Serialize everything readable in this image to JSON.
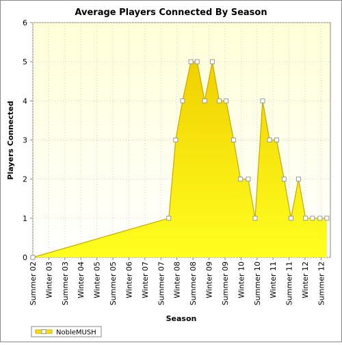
{
  "chart_data": {
    "type": "area",
    "title": "Average Players Connected By Season",
    "x_label": "Season",
    "y_label": "Players Connected",
    "x": [
      0,
      8.49,
      8.92,
      9.35,
      9.87,
      10.26,
      10.73,
      11.21,
      11.64,
      12.07,
      12.54,
      12.97,
      13.45,
      13.88,
      14.35,
      14.78,
      15.22,
      15.69,
      16.12,
      16.59,
      17.03,
      17.46,
      17.93,
      18.36
    ],
    "series": [
      {
        "name": "NobleMUSH",
        "color": "#ffe600",
        "values": [
          0,
          1,
          3,
          4,
          5,
          5,
          4,
          5,
          4,
          4,
          3,
          2,
          2,
          1,
          4,
          3,
          3,
          2,
          1,
          2,
          1,
          1,
          1,
          1
        ]
      }
    ],
    "xlim": [
      0,
      18.58
    ],
    "xticks": [
      {
        "value": 0,
        "label": "Summer 02"
      },
      {
        "value": 1,
        "label": "Winter 03"
      },
      {
        "value": 2,
        "label": "Summer 03"
      },
      {
        "value": 3,
        "label": "Winter 04"
      },
      {
        "value": 4,
        "label": "Winter 05"
      },
      {
        "value": 5,
        "label": "Summer 05"
      },
      {
        "value": 6,
        "label": "Winter 06"
      },
      {
        "value": 7,
        "label": "Winter 07"
      },
      {
        "value": 8,
        "label": "Summer 07"
      },
      {
        "value": 9,
        "label": "Winter 08"
      },
      {
        "value": 10,
        "label": "Summer 08"
      },
      {
        "value": 11,
        "label": "Winter 09"
      },
      {
        "value": 12,
        "label": "Summer 09"
      },
      {
        "value": 13,
        "label": "Winter 10"
      },
      {
        "value": 14,
        "label": "Summer 10"
      },
      {
        "value": 15,
        "label": "Winter 11"
      },
      {
        "value": 16,
        "label": "Summer 11"
      },
      {
        "value": 17,
        "label": "Winter 12"
      },
      {
        "value": 18,
        "label": "Summer 12"
      }
    ],
    "ylim": [
      0,
      6
    ],
    "yticks": [
      0,
      1,
      2,
      3,
      4,
      5,
      6
    ],
    "grid": true,
    "legend": "bottom-left"
  }
}
